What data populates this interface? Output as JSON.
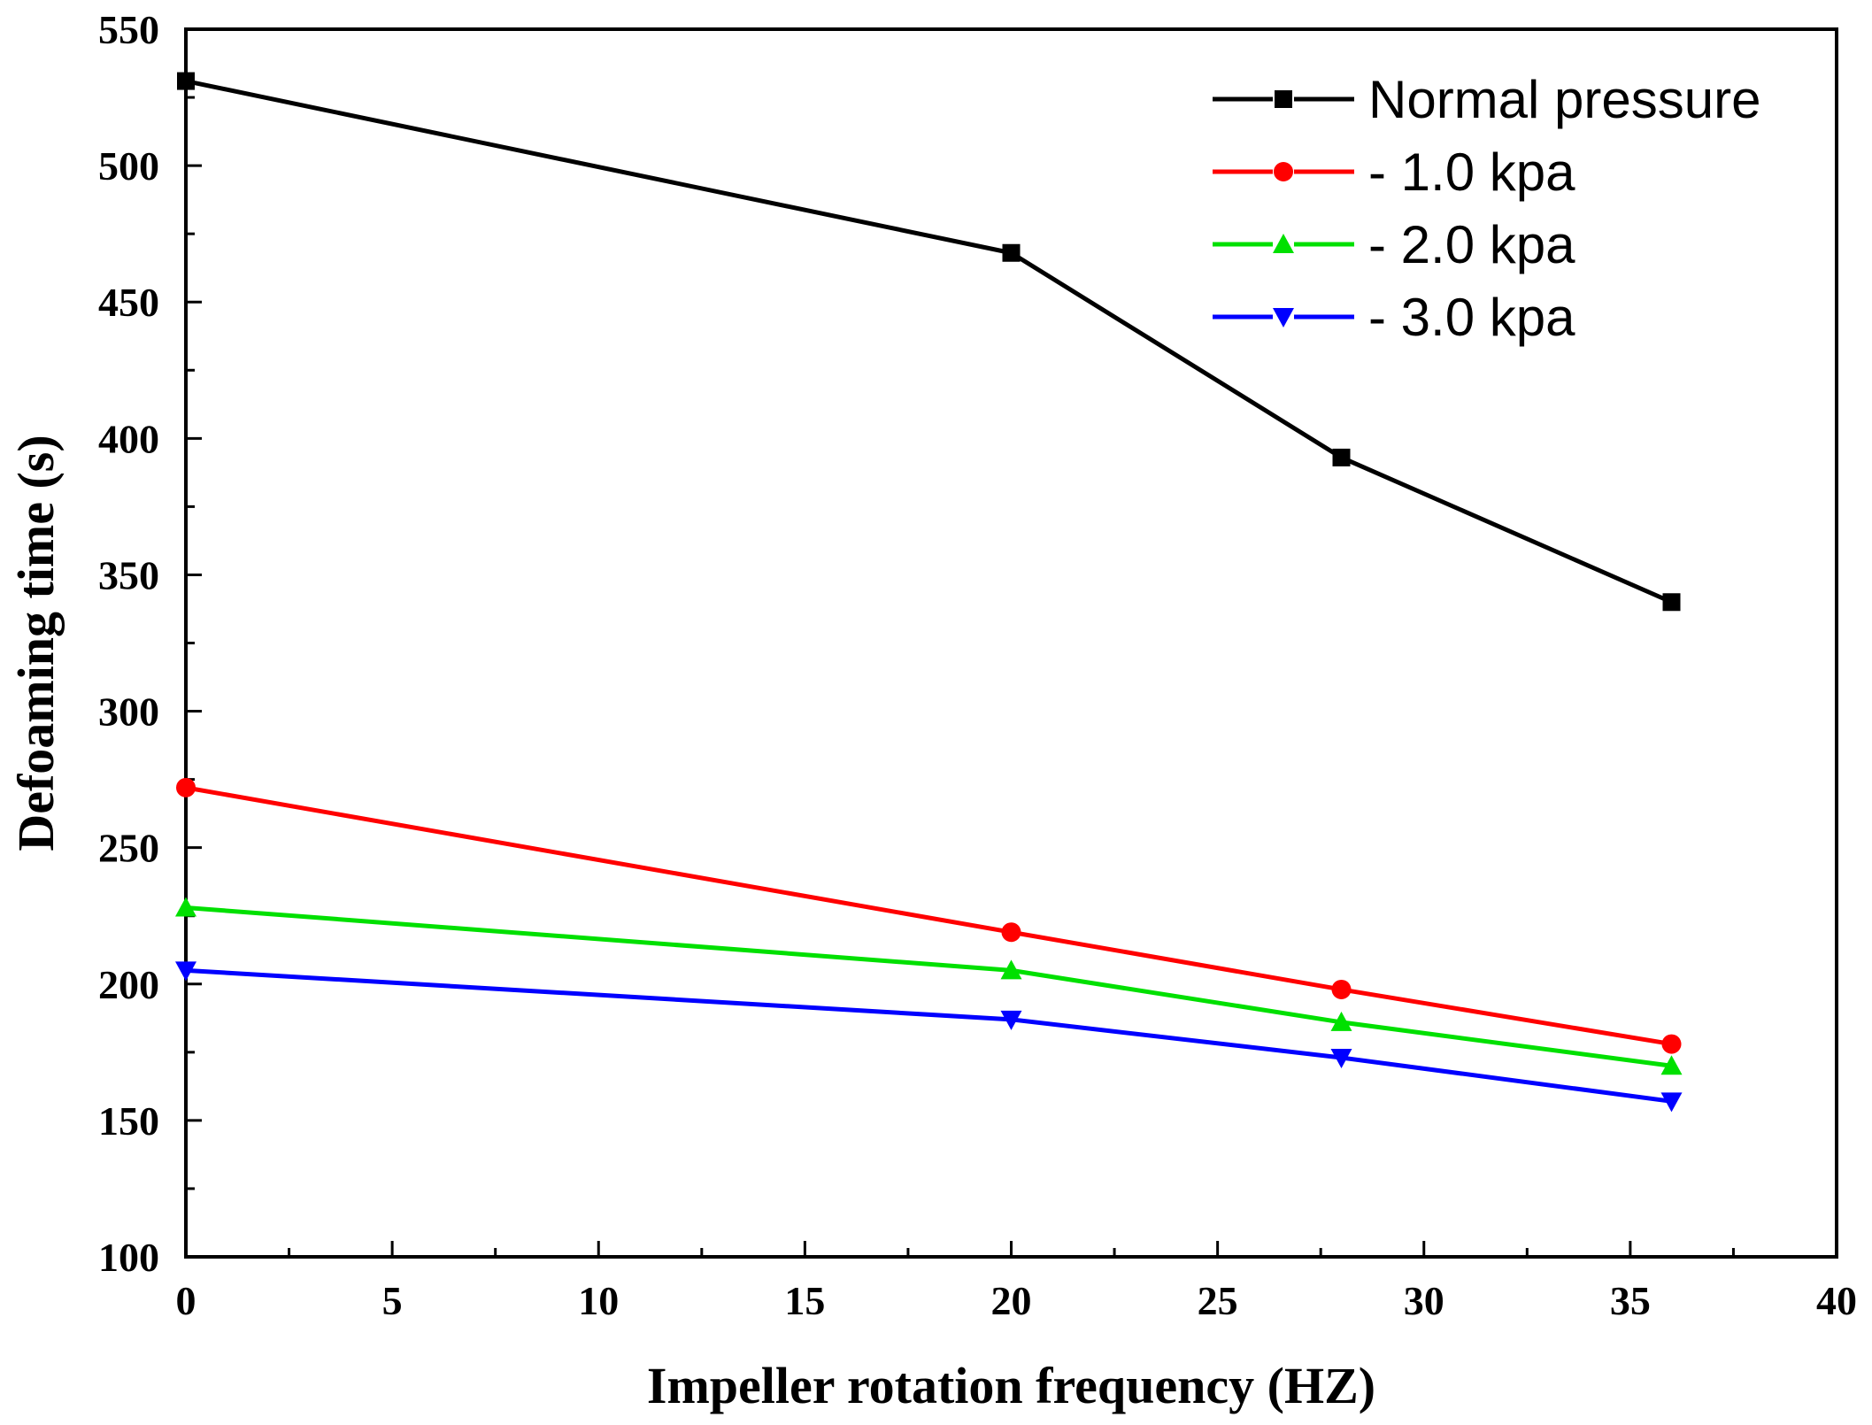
{
  "chart_data": {
    "type": "line",
    "title": "",
    "xlabel": "Impeller rotation frequency (HZ)",
    "ylabel": "Defoaming time (s)",
    "xlim": [
      0,
      40
    ],
    "ylim": [
      100,
      550
    ],
    "xticks": [
      0,
      5,
      10,
      15,
      20,
      25,
      30,
      35,
      40
    ],
    "yticks": [
      100,
      150,
      200,
      250,
      300,
      350,
      400,
      450,
      500,
      550
    ],
    "grid": false,
    "legend_position": "top-right",
    "x": [
      0,
      20,
      28,
      36
    ],
    "series": [
      {
        "name": "Normal pressure",
        "color": "#000000",
        "marker": "square",
        "values": [
          531,
          468,
          393,
          340
        ]
      },
      {
        "name": "- 1.0 kpa",
        "color": "#ff0000",
        "marker": "circle",
        "values": [
          272,
          219,
          198,
          178
        ]
      },
      {
        "name": "- 2.0 kpa",
        "color": "#00e000",
        "marker": "triangle-up",
        "values": [
          228,
          205,
          186,
          170
        ]
      },
      {
        "name": "- 3.0 kpa",
        "color": "#0000ff",
        "marker": "triangle-down",
        "values": [
          205,
          187,
          173,
          157
        ]
      }
    ]
  }
}
